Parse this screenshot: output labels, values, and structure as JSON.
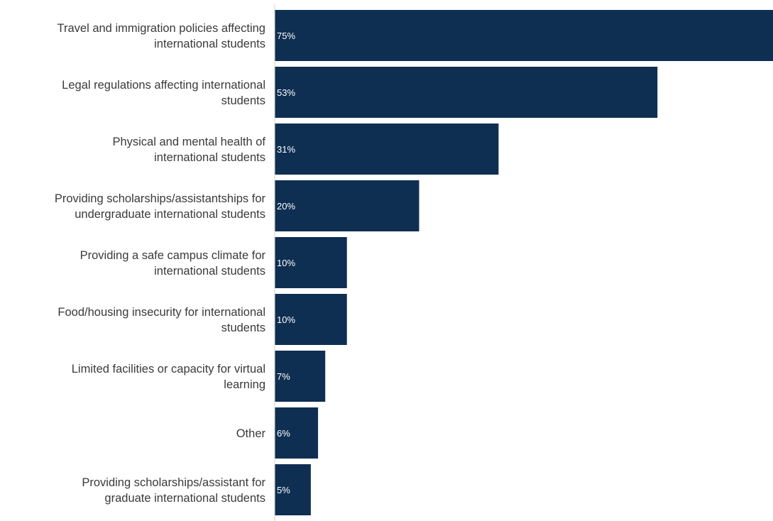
{
  "chart_data": {
    "type": "bar",
    "orientation": "horizontal",
    "title": "",
    "xlabel": "",
    "ylabel": "",
    "categories": [
      [
        "Travel and immigration policies affecting",
        "international students"
      ],
      [
        "Legal regulations affecting international",
        "students"
      ],
      [
        "Physical and mental health of",
        "international students"
      ],
      [
        "Providing scholarships/assistantships for",
        "undergraduate international students"
      ],
      [
        "Providing a safe campus climate for",
        "international students"
      ],
      [
        "Food/housing insecurity for international",
        "students"
      ],
      [
        "Limited facilities or capacity for virtual",
        "learning"
      ],
      [
        "Other"
      ],
      [
        "Providing scholarships/assistant for",
        "graduate international students"
      ]
    ],
    "values": [
      75,
      53,
      31,
      20,
      10,
      10,
      7,
      6,
      5
    ],
    "value_labels": [
      "75%",
      "53%",
      "31%",
      "20%",
      "10%",
      "10%",
      "7%",
      "6%",
      "5%"
    ],
    "unit": "%",
    "xlim": [
      0,
      69
    ],
    "grid": false,
    "legend": "none",
    "colors": {
      "bar": "#0e2f52",
      "value_text": "#ffffff",
      "label_text": "#3a3a3a",
      "axis": "#d6d6d6"
    }
  }
}
